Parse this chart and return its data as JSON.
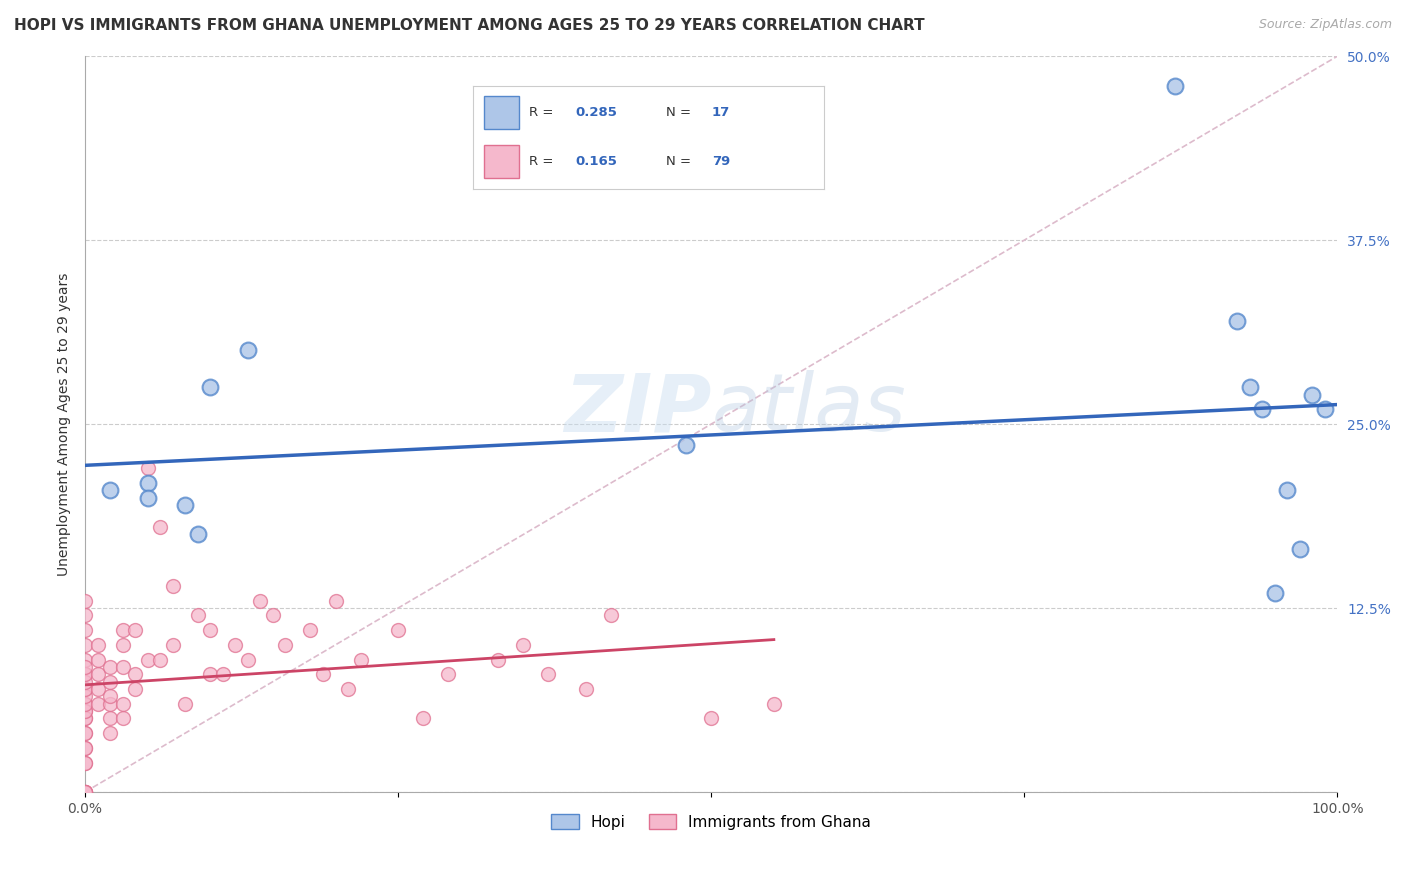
{
  "title": "HOPI VS IMMIGRANTS FROM GHANA UNEMPLOYMENT AMONG AGES 25 TO 29 YEARS CORRELATION CHART",
  "source": "Source: ZipAtlas.com",
  "ylabel": "Unemployment Among Ages 25 to 29 years",
  "xlim": [
    0,
    1.0
  ],
  "ylim": [
    0,
    0.5
  ],
  "yticks": [
    0.0,
    0.125,
    0.25,
    0.375,
    0.5
  ],
  "ytick_labels": [
    "",
    "12.5%",
    "25.0%",
    "37.5%",
    "50.0%"
  ],
  "hopi_R": "0.285",
  "hopi_N": "17",
  "ghana_R": "0.165",
  "ghana_N": "79",
  "hopi_color": "#aec6e8",
  "hopi_edge_color": "#5588cc",
  "ghana_color": "#f5b8cc",
  "ghana_edge_color": "#e07090",
  "hopi_line_color": "#3366bb",
  "ghana_line_color": "#cc4466",
  "diagonal_color": "#ddbbcc",
  "background_color": "#ffffff",
  "watermark": "ZIPatlas",
  "hopi_scatter_x": [
    0.02,
    0.05,
    0.05,
    0.08,
    0.09,
    0.1,
    0.13,
    0.48,
    0.87,
    0.92,
    0.93,
    0.94,
    0.95,
    0.96,
    0.97,
    0.98,
    0.99
  ],
  "hopi_scatter_y": [
    0.205,
    0.21,
    0.2,
    0.195,
    0.175,
    0.275,
    0.3,
    0.236,
    0.48,
    0.32,
    0.275,
    0.26,
    0.135,
    0.205,
    0.165,
    0.27,
    0.26
  ],
  "ghana_scatter_x": [
    0.0,
    0.0,
    0.0,
    0.0,
    0.0,
    0.0,
    0.0,
    0.0,
    0.0,
    0.0,
    0.0,
    0.0,
    0.0,
    0.0,
    0.0,
    0.0,
    0.0,
    0.0,
    0.0,
    0.0,
    0.0,
    0.0,
    0.0,
    0.0,
    0.0,
    0.0,
    0.0,
    0.0,
    0.0,
    0.01,
    0.01,
    0.01,
    0.01,
    0.01,
    0.02,
    0.02,
    0.02,
    0.02,
    0.02,
    0.02,
    0.03,
    0.03,
    0.03,
    0.03,
    0.03,
    0.04,
    0.04,
    0.04,
    0.05,
    0.05,
    0.06,
    0.06,
    0.07,
    0.07,
    0.08,
    0.09,
    0.1,
    0.1,
    0.11,
    0.12,
    0.13,
    0.14,
    0.15,
    0.16,
    0.18,
    0.19,
    0.2,
    0.21,
    0.22,
    0.25,
    0.27,
    0.29,
    0.33,
    0.35,
    0.37,
    0.4,
    0.42,
    0.5,
    0.55
  ],
  "ghana_scatter_y": [
    0.0,
    0.0,
    0.0,
    0.0,
    0.0,
    0.02,
    0.03,
    0.04,
    0.05,
    0.055,
    0.06,
    0.07,
    0.08,
    0.09,
    0.1,
    0.11,
    0.12,
    0.13,
    0.04,
    0.05,
    0.055,
    0.06,
    0.065,
    0.07,
    0.075,
    0.08,
    0.085,
    0.02,
    0.03,
    0.06,
    0.07,
    0.08,
    0.09,
    0.1,
    0.04,
    0.05,
    0.06,
    0.065,
    0.075,
    0.085,
    0.05,
    0.06,
    0.1,
    0.11,
    0.085,
    0.07,
    0.11,
    0.08,
    0.09,
    0.22,
    0.09,
    0.18,
    0.1,
    0.14,
    0.06,
    0.12,
    0.11,
    0.08,
    0.08,
    0.1,
    0.09,
    0.13,
    0.12,
    0.1,
    0.11,
    0.08,
    0.13,
    0.07,
    0.09,
    0.11,
    0.05,
    0.08,
    0.09,
    0.1,
    0.08,
    0.07,
    0.12,
    0.05,
    0.06
  ],
  "title_fontsize": 11,
  "axis_label_fontsize": 10,
  "tick_fontsize": 10,
  "legend_fontsize": 10,
  "source_fontsize": 9
}
